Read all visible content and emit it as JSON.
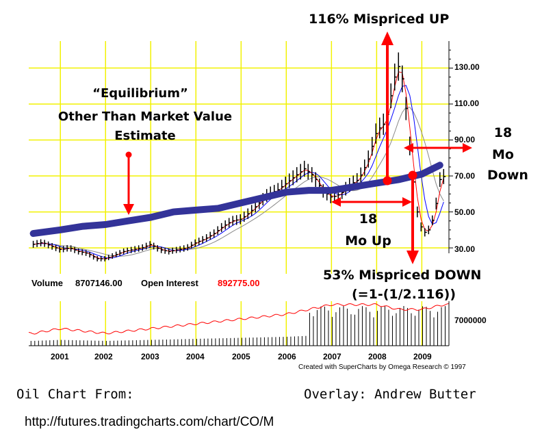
{
  "chart_data": {
    "type": "line",
    "x_range": [
      2000.3,
      2009.6
    ],
    "y_range": [
      27,
      145
    ],
    "x_ticks": [
      "2001",
      "2002",
      "2003",
      "2004",
      "2005",
      "2006",
      "2007",
      "2008",
      "2009"
    ],
    "y_ticks": [
      "130.00",
      "110.00",
      "90.00",
      "70.00",
      "50.00",
      "30.00"
    ],
    "y_tick_values": [
      130,
      110,
      90,
      70,
      50,
      30
    ],
    "volume_tick_label": "7000000",
    "series": [
      {
        "role": "price_monthly",
        "x": [
          2000.4,
          2000.6,
          2000.8,
          2001.0,
          2001.2,
          2001.4,
          2001.6,
          2001.8,
          2002.0,
          2002.2,
          2002.4,
          2002.6,
          2002.8,
          2003.0,
          2003.2,
          2003.4,
          2003.6,
          2003.8,
          2004.0,
          2004.2,
          2004.4,
          2004.6,
          2004.8,
          2005.0,
          2005.2,
          2005.4,
          2005.6,
          2005.8,
          2006.0,
          2006.2,
          2006.4,
          2006.6,
          2006.8,
          2007.0,
          2007.2,
          2007.4,
          2007.6,
          2007.8,
          2008.0,
          2008.2,
          2008.4,
          2008.5,
          2008.6,
          2008.7,
          2008.8,
          2008.9,
          2009.0,
          2009.1,
          2009.2,
          2009.3,
          2009.4,
          2009.5
        ],
        "y": [
          32,
          33,
          31,
          29,
          30,
          28,
          27,
          24,
          24,
          26,
          28,
          29,
          30,
          32,
          29,
          28,
          29,
          30,
          33,
          35,
          38,
          42,
          45,
          46,
          50,
          55,
          60,
          62,
          66,
          70,
          74,
          70,
          62,
          58,
          60,
          65,
          68,
          78,
          95,
          100,
          125,
          132,
          120,
          95,
          70,
          50,
          40,
          38,
          42,
          52,
          68,
          70
        ]
      },
      {
        "role": "equilibrium_estimate",
        "x": [
          2000.4,
          2001.0,
          2001.5,
          2002.0,
          2002.5,
          2003.0,
          2003.5,
          2004.0,
          2004.5,
          2005.0,
          2005.5,
          2006.0,
          2006.5,
          2007.0,
          2007.5,
          2008.0,
          2008.5,
          2009.0,
          2009.4
        ],
        "y": [
          38,
          40,
          42,
          43,
          45,
          47,
          50,
          51,
          52,
          55,
          58,
          61,
          62,
          62,
          64,
          66,
          68,
          71,
          76
        ]
      }
    ],
    "volume": {
      "x": [
        2000.4,
        2001.0,
        2002.0,
        2003.0,
        2004.0,
        2005.0,
        2006.0,
        2006.5,
        2007.0,
        2007.5,
        2008.0,
        2008.5,
        2009.0,
        2009.5
      ],
      "open_interest": [
        2,
        3,
        2,
        3,
        4,
        5,
        6,
        7,
        8,
        8,
        8,
        7,
        7,
        8
      ]
    }
  },
  "annotations": {
    "title_up": "116% Mispriced UP",
    "equilibrium_line1": "“Equilibrium”",
    "equilibrium_line2": "Other Than Market Value",
    "equilibrium_line3": "Estimate",
    "mo_up_line1": "18",
    "mo_up_line2": "Mo Up",
    "mo_down_line1": "18",
    "mo_down_line2": "Mo",
    "mo_down_line3": "Down",
    "mispriced_down": "53% Mispriced DOWN",
    "mispriced_formula": "(=1-(1/2.116))"
  },
  "legend": {
    "volume_label": "Volume",
    "volume_value": "8707146.00",
    "oi_label": "Open Interest",
    "oi_value": "892775.00"
  },
  "credit": "Created with SuperCharts by Omega Research © 1997",
  "footer": {
    "source_label": "Oil Chart From:",
    "overlay_label": "Overlay: Andrew Butter",
    "url": "http://futures.tradingcharts.com/chart/CO/M"
  },
  "colors": {
    "grid": "#f2f200",
    "price_bars": "#000000",
    "red_ma": "#ff0000",
    "blue_ma": "#0000ff",
    "gray_ma": "#888888",
    "equilibrium": "#333399",
    "arrows": "#ff0000"
  }
}
